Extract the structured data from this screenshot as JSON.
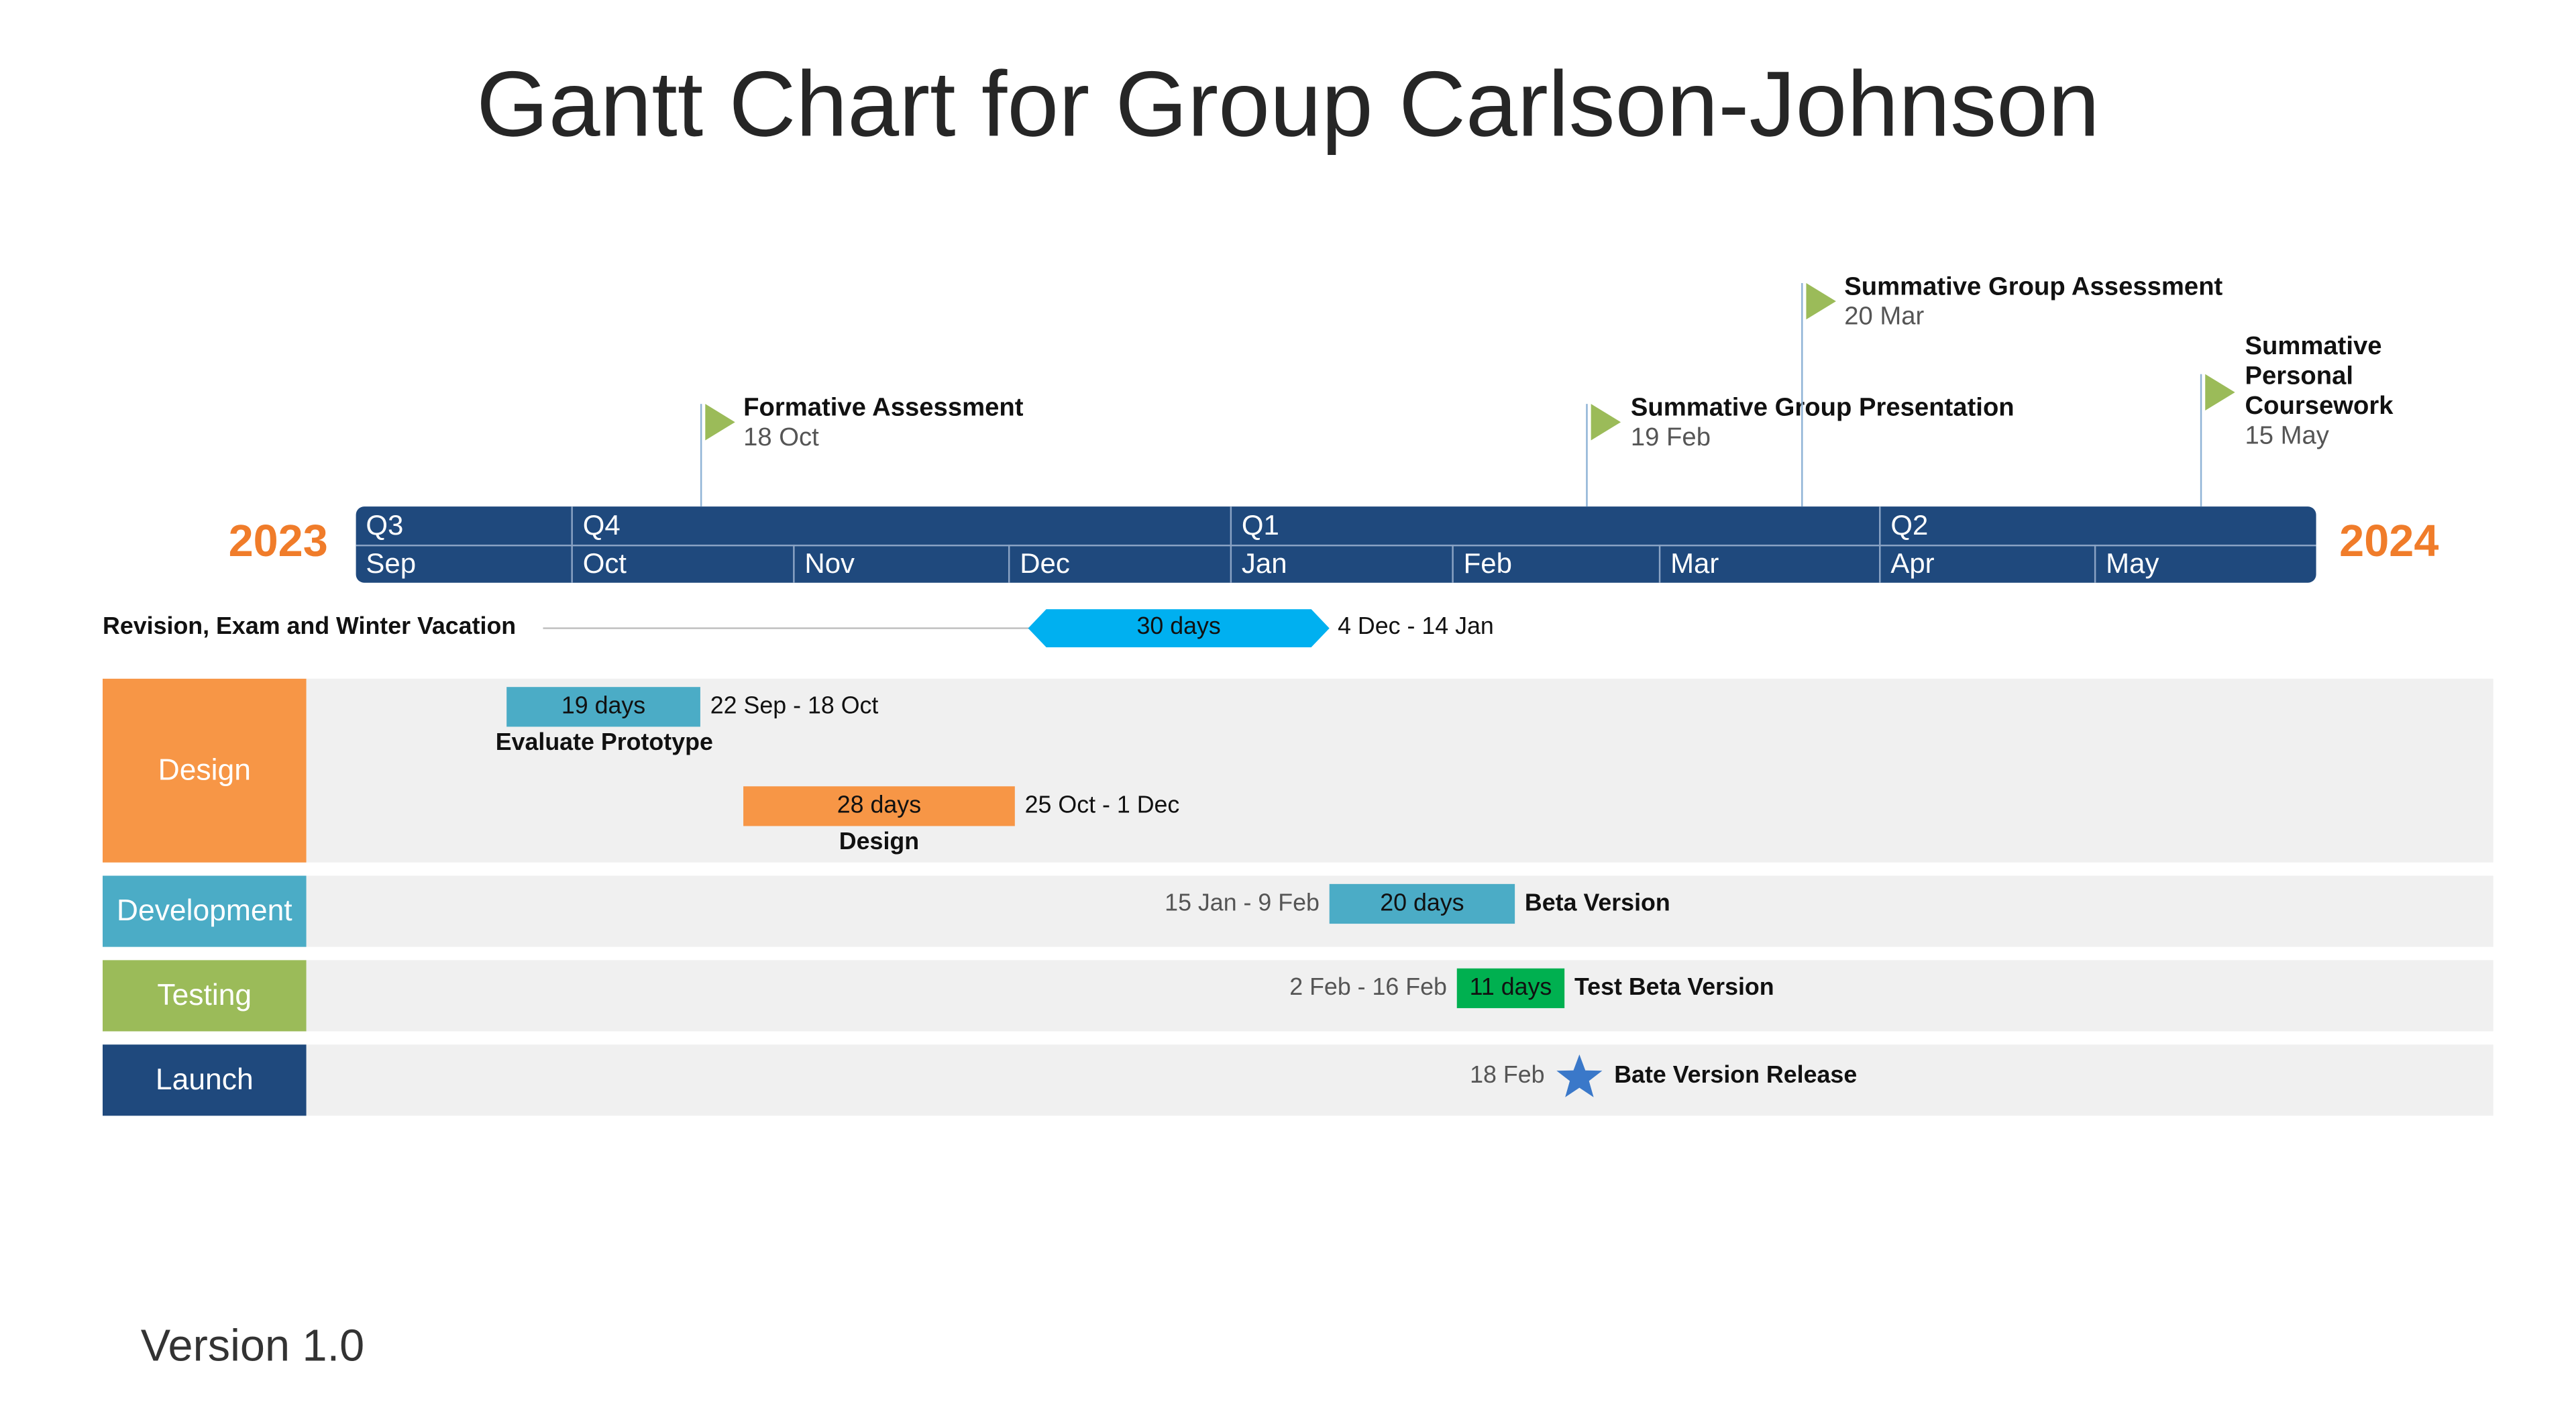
{
  "title": "Gantt Chart for Group Carlson-Johnson",
  "version": "Version 1.0",
  "colors": {
    "timeline": "#1f497d",
    "year": "#f07c2a",
    "flag": "#9bbb59",
    "row_bg": "#f0f0f0",
    "design": "#f79646",
    "development": "#4bacc6",
    "testing": "#9bbb59",
    "launch": "#1f497d",
    "vacation": "#00b0f0",
    "test_bar": "#00b050",
    "star": "#3a78c9"
  },
  "chart_data": {
    "type": "gantt",
    "title": "Gantt Chart for Group Carlson-Johnson",
    "start_year": "2023",
    "end_year": "2024",
    "quarters": [
      "Q3",
      "Q4",
      "Q1",
      "Q2"
    ],
    "months": [
      "Sep",
      "Oct",
      "Nov",
      "Dec",
      "Jan",
      "Feb",
      "Mar",
      "Apr",
      "May"
    ],
    "milestones": [
      {
        "name": "Formative Assessment",
        "date": "18 Oct"
      },
      {
        "name": "Summative Group Presentation",
        "date": "19 Feb"
      },
      {
        "name": "Summative Group Assessment",
        "date": "20 Mar"
      },
      {
        "name": "Summative Personal Coursework",
        "date": "15 May"
      }
    ],
    "vacation": {
      "name": "Revision, Exam and Winter Vacation",
      "duration": "30 days",
      "range": "4 Dec - 14 Jan"
    },
    "categories": [
      {
        "name": "Design",
        "tasks": [
          {
            "name": "Evaluate Prototype",
            "duration": "19 days",
            "range": "22 Sep - 18 Oct"
          },
          {
            "name": "Design",
            "duration": "28 days",
            "range": "25 Oct - 1 Dec"
          }
        ]
      },
      {
        "name": "Development",
        "tasks": [
          {
            "name": "Beta Version",
            "duration": "20 days",
            "range": "15 Jan - 9 Feb"
          }
        ]
      },
      {
        "name": "Testing",
        "tasks": [
          {
            "name": "Test Beta Version",
            "duration": "11 days",
            "range": "2 Feb - 16 Feb"
          }
        ]
      },
      {
        "name": "Launch",
        "tasks": [
          {
            "name": "Bate Version Release",
            "date": "18 Feb",
            "type": "milestone"
          }
        ]
      }
    ]
  }
}
